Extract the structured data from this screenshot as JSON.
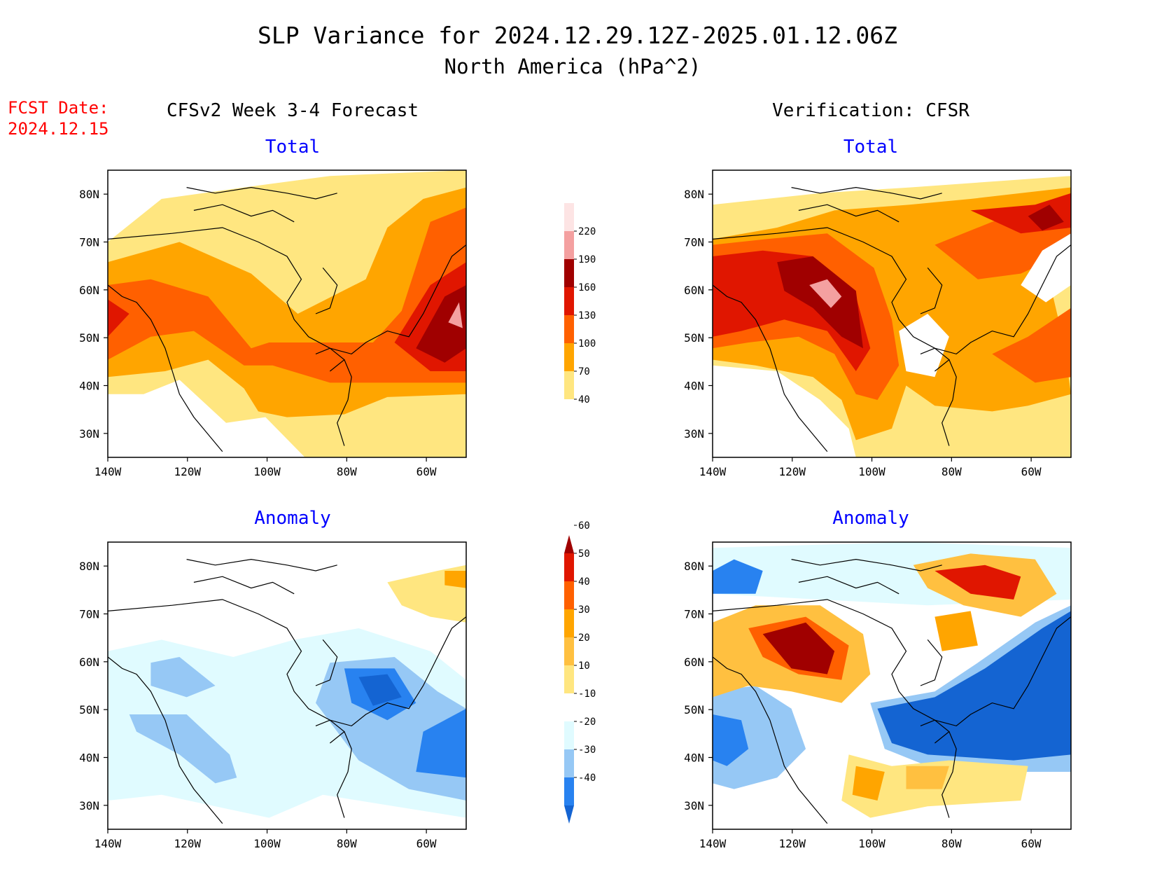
{
  "header": {
    "title": "SLP Variance for 2024.12.29.12Z-2025.01.12.06Z",
    "subtitle": "North America (hPa^2)",
    "fcst_label": "FCST Date:",
    "fcst_date": "2024.12.15",
    "left_heading": "CFSv2 Week 3-4 Forecast",
    "right_heading": "Verification: CFSR"
  },
  "panels": [
    {
      "id": "fcst-total",
      "title": "Total",
      "field": "total"
    },
    {
      "id": "verif-total",
      "title": "Total",
      "field": "total"
    },
    {
      "id": "fcst-anomaly",
      "title": "Anomaly",
      "field": "anomaly"
    },
    {
      "id": "verif-anomaly",
      "title": "Anomaly",
      "field": "anomaly"
    }
  ],
  "axes": {
    "lon_labels": [
      "140W",
      "120W",
      "100W",
      "80W",
      "60W"
    ],
    "lat_labels": [
      "80N",
      "70N",
      "60N",
      "50N",
      "40N",
      "30N"
    ],
    "lon_range": [
      -140,
      -50
    ],
    "lat_range": [
      25,
      85
    ]
  },
  "colorbars": {
    "total": {
      "labels": [
        "40",
        "70",
        "100",
        "130",
        "160",
        "190",
        "220"
      ],
      "colors": [
        "#ffe680",
        "#ffa500",
        "#ff6000",
        "#e01600",
        "#a00000",
        "#f4a0a0",
        "#fde4e4"
      ]
    },
    "anomaly": {
      "labels": [
        "-40",
        "-30",
        "-20",
        "-10",
        "10",
        "20",
        "30",
        "40",
        "50",
        "60"
      ],
      "colors": [
        "#1464d2",
        "#2882f0",
        "#96c8f5",
        "#e0fbff",
        "#ffffff",
        "#ffe680",
        "#ffc040",
        "#ffa500",
        "#ff6000",
        "#e01600",
        "#a00000"
      ]
    }
  },
  "colors": {
    "fcst_date": "#ff0000",
    "panel_title": "#0000ff",
    "coastline": "#000000"
  }
}
